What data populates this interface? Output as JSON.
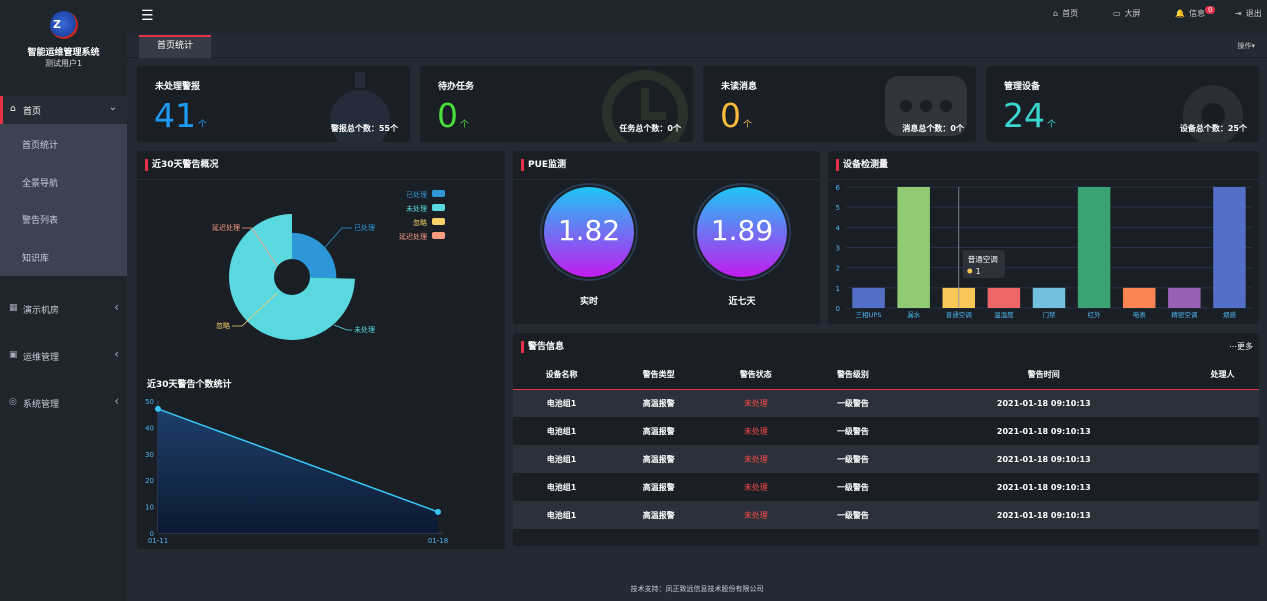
{
  "sidebar": {
    "system_name": "智能运维管理系统",
    "user": "测试用户1",
    "home_label": "首页",
    "sub_items": [
      "首页统计",
      "全景导航",
      "警告列表",
      "知识库"
    ],
    "items": [
      {
        "label": "演示机房",
        "icon": "grid-icon"
      },
      {
        "label": "运维管理",
        "icon": "monitor-icon"
      },
      {
        "label": "系统管理",
        "icon": "settings-icon"
      }
    ]
  },
  "topbar": {
    "home": "首页",
    "bigscreen": "大屏",
    "message": "信息",
    "message_badge": "0",
    "logout": "退出"
  },
  "tabs": {
    "active": "首页统计",
    "ops": "操作▾"
  },
  "stats": [
    {
      "title": "未处理警报",
      "value": "41",
      "unit": "个",
      "total": "警报总个数：55个",
      "color": "#1e9bf5"
    },
    {
      "title": "待办任务",
      "value": "0",
      "unit": "个",
      "total": "任务总个数：0个",
      "color": "#4ade3a"
    },
    {
      "title": "未读消息",
      "value": "0",
      "unit": "个",
      "total": "消息总个数：0个",
      "color": "#f7b93a"
    },
    {
      "title": "管理设备",
      "value": "24",
      "unit": "个",
      "total": "设备总个数：25个",
      "color": "#3ad6cf"
    }
  ],
  "panels": {
    "alarm30": "近30天警告概况",
    "pue": "PUE监测",
    "device": "设备检测量",
    "alarm_info": "警告信息",
    "more": "⋯更多",
    "count30": "近30天警告个数统计"
  },
  "pue": {
    "realtime": {
      "value": "1.82",
      "label": "实时"
    },
    "week": {
      "value": "1.89",
      "label": "近七天"
    }
  },
  "alarm_table": {
    "headers": [
      "设备名称",
      "警告类型",
      "警告状态",
      "警告级别",
      "警告时间",
      "处理人"
    ],
    "rows": [
      [
        "电池组1",
        "高温报警",
        "未处理",
        "一级警告",
        "2021-01-18 09:10:13",
        ""
      ],
      [
        "电池组1",
        "高温报警",
        "未处理",
        "一级警告",
        "2021-01-18 09:10:13",
        ""
      ],
      [
        "电池组1",
        "高温报警",
        "未处理",
        "一级警告",
        "2021-01-18 09:10:13",
        ""
      ],
      [
        "电池组1",
        "高温报警",
        "未处理",
        "一级警告",
        "2021-01-18 09:10:13",
        ""
      ],
      [
        "电池组1",
        "高温报警",
        "未处理",
        "一级警告",
        "2021-01-18 09:10:13",
        ""
      ]
    ]
  },
  "footer": "技术支持：凤正致远信息技术股份有限公司",
  "chart_data": [
    {
      "type": "pie",
      "variant": "rose",
      "title": "近30天警告概况",
      "labels": [
        "已处理",
        "未处理",
        "忽略",
        "延迟处理"
      ],
      "values": [
        14,
        41,
        0,
        0
      ],
      "colors": [
        "#2e97d8",
        "#5ad8e0",
        "#f7d36c",
        "#f99c80"
      ],
      "legend": "top-right"
    },
    {
      "type": "bar",
      "title": "设备检测量",
      "categories": [
        "三相UPS",
        "漏水",
        "普通空调",
        "温湿度",
        "门禁",
        "红外",
        "电表",
        "精密空调",
        "烟感"
      ],
      "values": [
        1,
        6,
        1,
        1,
        1,
        6,
        1,
        1,
        6
      ],
      "colors": [
        "#5470c6",
        "#91cc75",
        "#fac858",
        "#ee6666",
        "#73c0de",
        "#3ba272",
        "#fc8452",
        "#9a60b4",
        "#5470c6"
      ],
      "ylim": [
        0,
        6
      ],
      "grid": true,
      "tooltip": {
        "category": "普通空调",
        "value": "1"
      }
    },
    {
      "type": "area",
      "title": "近30天警告个数统计",
      "x": [
        "01-11",
        "01-18"
      ],
      "values": [
        47,
        8
      ],
      "ylim": [
        0,
        50
      ],
      "yticks": [
        0,
        10,
        20,
        30,
        40,
        50
      ]
    }
  ]
}
